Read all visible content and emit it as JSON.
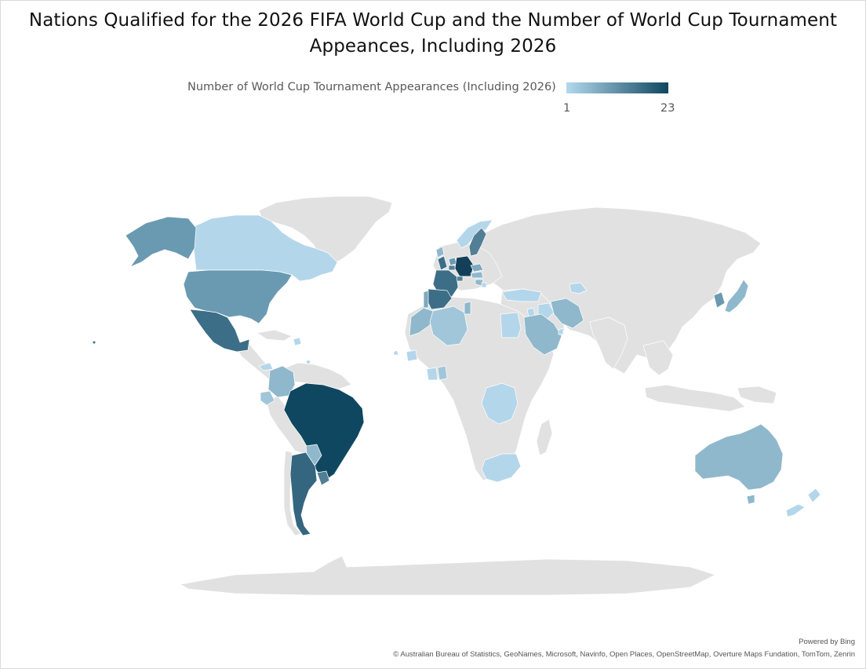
{
  "title_line1": "Nations Qualified for the 2026 FIFA World Cup and the Number of World Cup Tournament",
  "title_line2": "Appeances, Including 2026",
  "legend": {
    "label": "Number of World Cup Tournament Appearances (Including 2026)",
    "min": "1",
    "max": "23",
    "min_color": "#b3d9ee",
    "max_color": "#0f4760"
  },
  "colors": {
    "land": "#e1e1e1",
    "border": "#ffffff"
  },
  "countries": [
    {
      "name": "Brazil",
      "appearances": 23
    },
    {
      "name": "Germany",
      "appearances": 21
    },
    {
      "name": "Argentina",
      "appearances": 19
    },
    {
      "name": "France",
      "appearances": 17
    },
    {
      "name": "Mexico",
      "appearances": 18
    },
    {
      "name": "Spain",
      "appearances": 17
    },
    {
      "name": "Uruguay",
      "appearances": 15
    },
    {
      "name": "England",
      "appearances": 17
    },
    {
      "name": "Netherlands",
      "appearances": 12
    },
    {
      "name": "Switzerland",
      "appearances": 13
    },
    {
      "name": "Belgium",
      "appearances": 15
    },
    {
      "name": "Sweden",
      "appearances": 13
    },
    {
      "name": "United States",
      "appearances": 12
    },
    {
      "name": "Korea Republic",
      "appearances": 12
    },
    {
      "name": "Japan",
      "appearances": 8
    },
    {
      "name": "Australia",
      "appearances": 7
    },
    {
      "name": "Iran",
      "appearances": 7
    },
    {
      "name": "Saudi Arabia",
      "appearances": 7
    },
    {
      "name": "Paraguay",
      "appearances": 9
    },
    {
      "name": "Colombia",
      "appearances": 7
    },
    {
      "name": "Ecuador",
      "appearances": 5
    },
    {
      "name": "Morocco",
      "appearances": 7
    },
    {
      "name": "Tunisia",
      "appearances": 7
    },
    {
      "name": "Algeria",
      "appearances": 5
    },
    {
      "name": "Austria",
      "appearances": 8
    },
    {
      "name": "Croatia",
      "appearances": 7
    },
    {
      "name": "Scotland",
      "appearances": 9
    },
    {
      "name": "Norway",
      "appearances": 4
    },
    {
      "name": "Czechia",
      "appearances": 10
    },
    {
      "name": "Portugal",
      "appearances": 9
    },
    {
      "name": "Egypt",
      "appearances": 4
    },
    {
      "name": "Ghana",
      "appearances": 5
    },
    {
      "name": "Cote d'Ivoire",
      "appearances": 4
    },
    {
      "name": "Senegal",
      "appearances": 4
    },
    {
      "name": "South Africa",
      "appearances": 4
    },
    {
      "name": "New Zealand",
      "appearances": 3
    },
    {
      "name": "Canada",
      "appearances": 3
    },
    {
      "name": "Turkiye",
      "appearances": 3
    },
    {
      "name": "Jordan",
      "appearances": 1
    },
    {
      "name": "Uzbekistan",
      "appearances": 1
    },
    {
      "name": "Cape Verde",
      "appearances": 1
    },
    {
      "name": "DR Congo",
      "appearances": 2
    },
    {
      "name": "Iraq",
      "appearances": 2
    },
    {
      "name": "Qatar",
      "appearances": 2
    },
    {
      "name": "Haiti",
      "appearances": 2
    },
    {
      "name": "Bosnia and Herzegovina",
      "appearances": 2
    },
    {
      "name": "Panama",
      "appearances": 2
    },
    {
      "name": "Curacao",
      "appearances": 1
    }
  ],
  "credits": {
    "powered": "Powered by Bing",
    "attribution": "© Australian Bureau of Statistics, GeoNames, Microsoft, Navinfo, Open Places, OpenStreetMap, Overture Maps Fundation, TomTom, Zenrin"
  }
}
